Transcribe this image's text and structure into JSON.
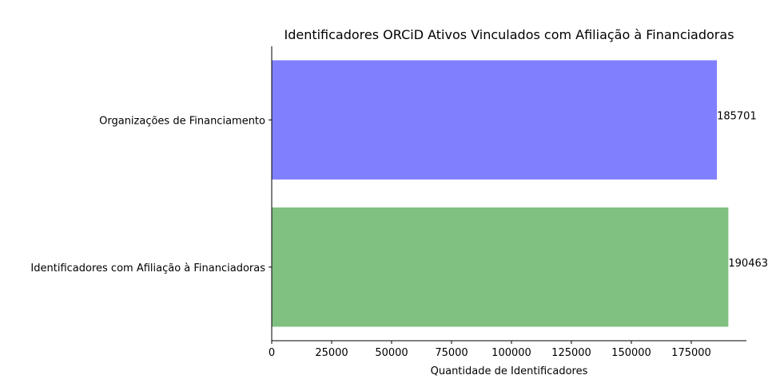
{
  "chart_data": {
    "type": "bar",
    "orientation": "horizontal",
    "title": "Identificadores ORCiD Ativos Vinculados com Afiliação à Financiadoras",
    "xlabel": "Quantidade de Identificadores",
    "ylabel": "",
    "xlim": [
      0,
      198000
    ],
    "x_ticks": [
      0,
      25000,
      50000,
      75000,
      100000,
      125000,
      150000,
      175000
    ],
    "x_tick_labels": [
      "0",
      "25000",
      "50000",
      "75000",
      "100000",
      "125000",
      "150000",
      "175000"
    ],
    "categories": [
      "Organizações de Financiamento",
      "Identificadores com Afiliação à Financiadoras"
    ],
    "values": [
      185701,
      190463
    ],
    "data_labels": [
      "185701",
      "190463"
    ],
    "colors": [
      "#8080ff",
      "#80c080"
    ],
    "grid": false,
    "legend": "none",
    "spines": [
      "left",
      "bottom"
    ]
  }
}
